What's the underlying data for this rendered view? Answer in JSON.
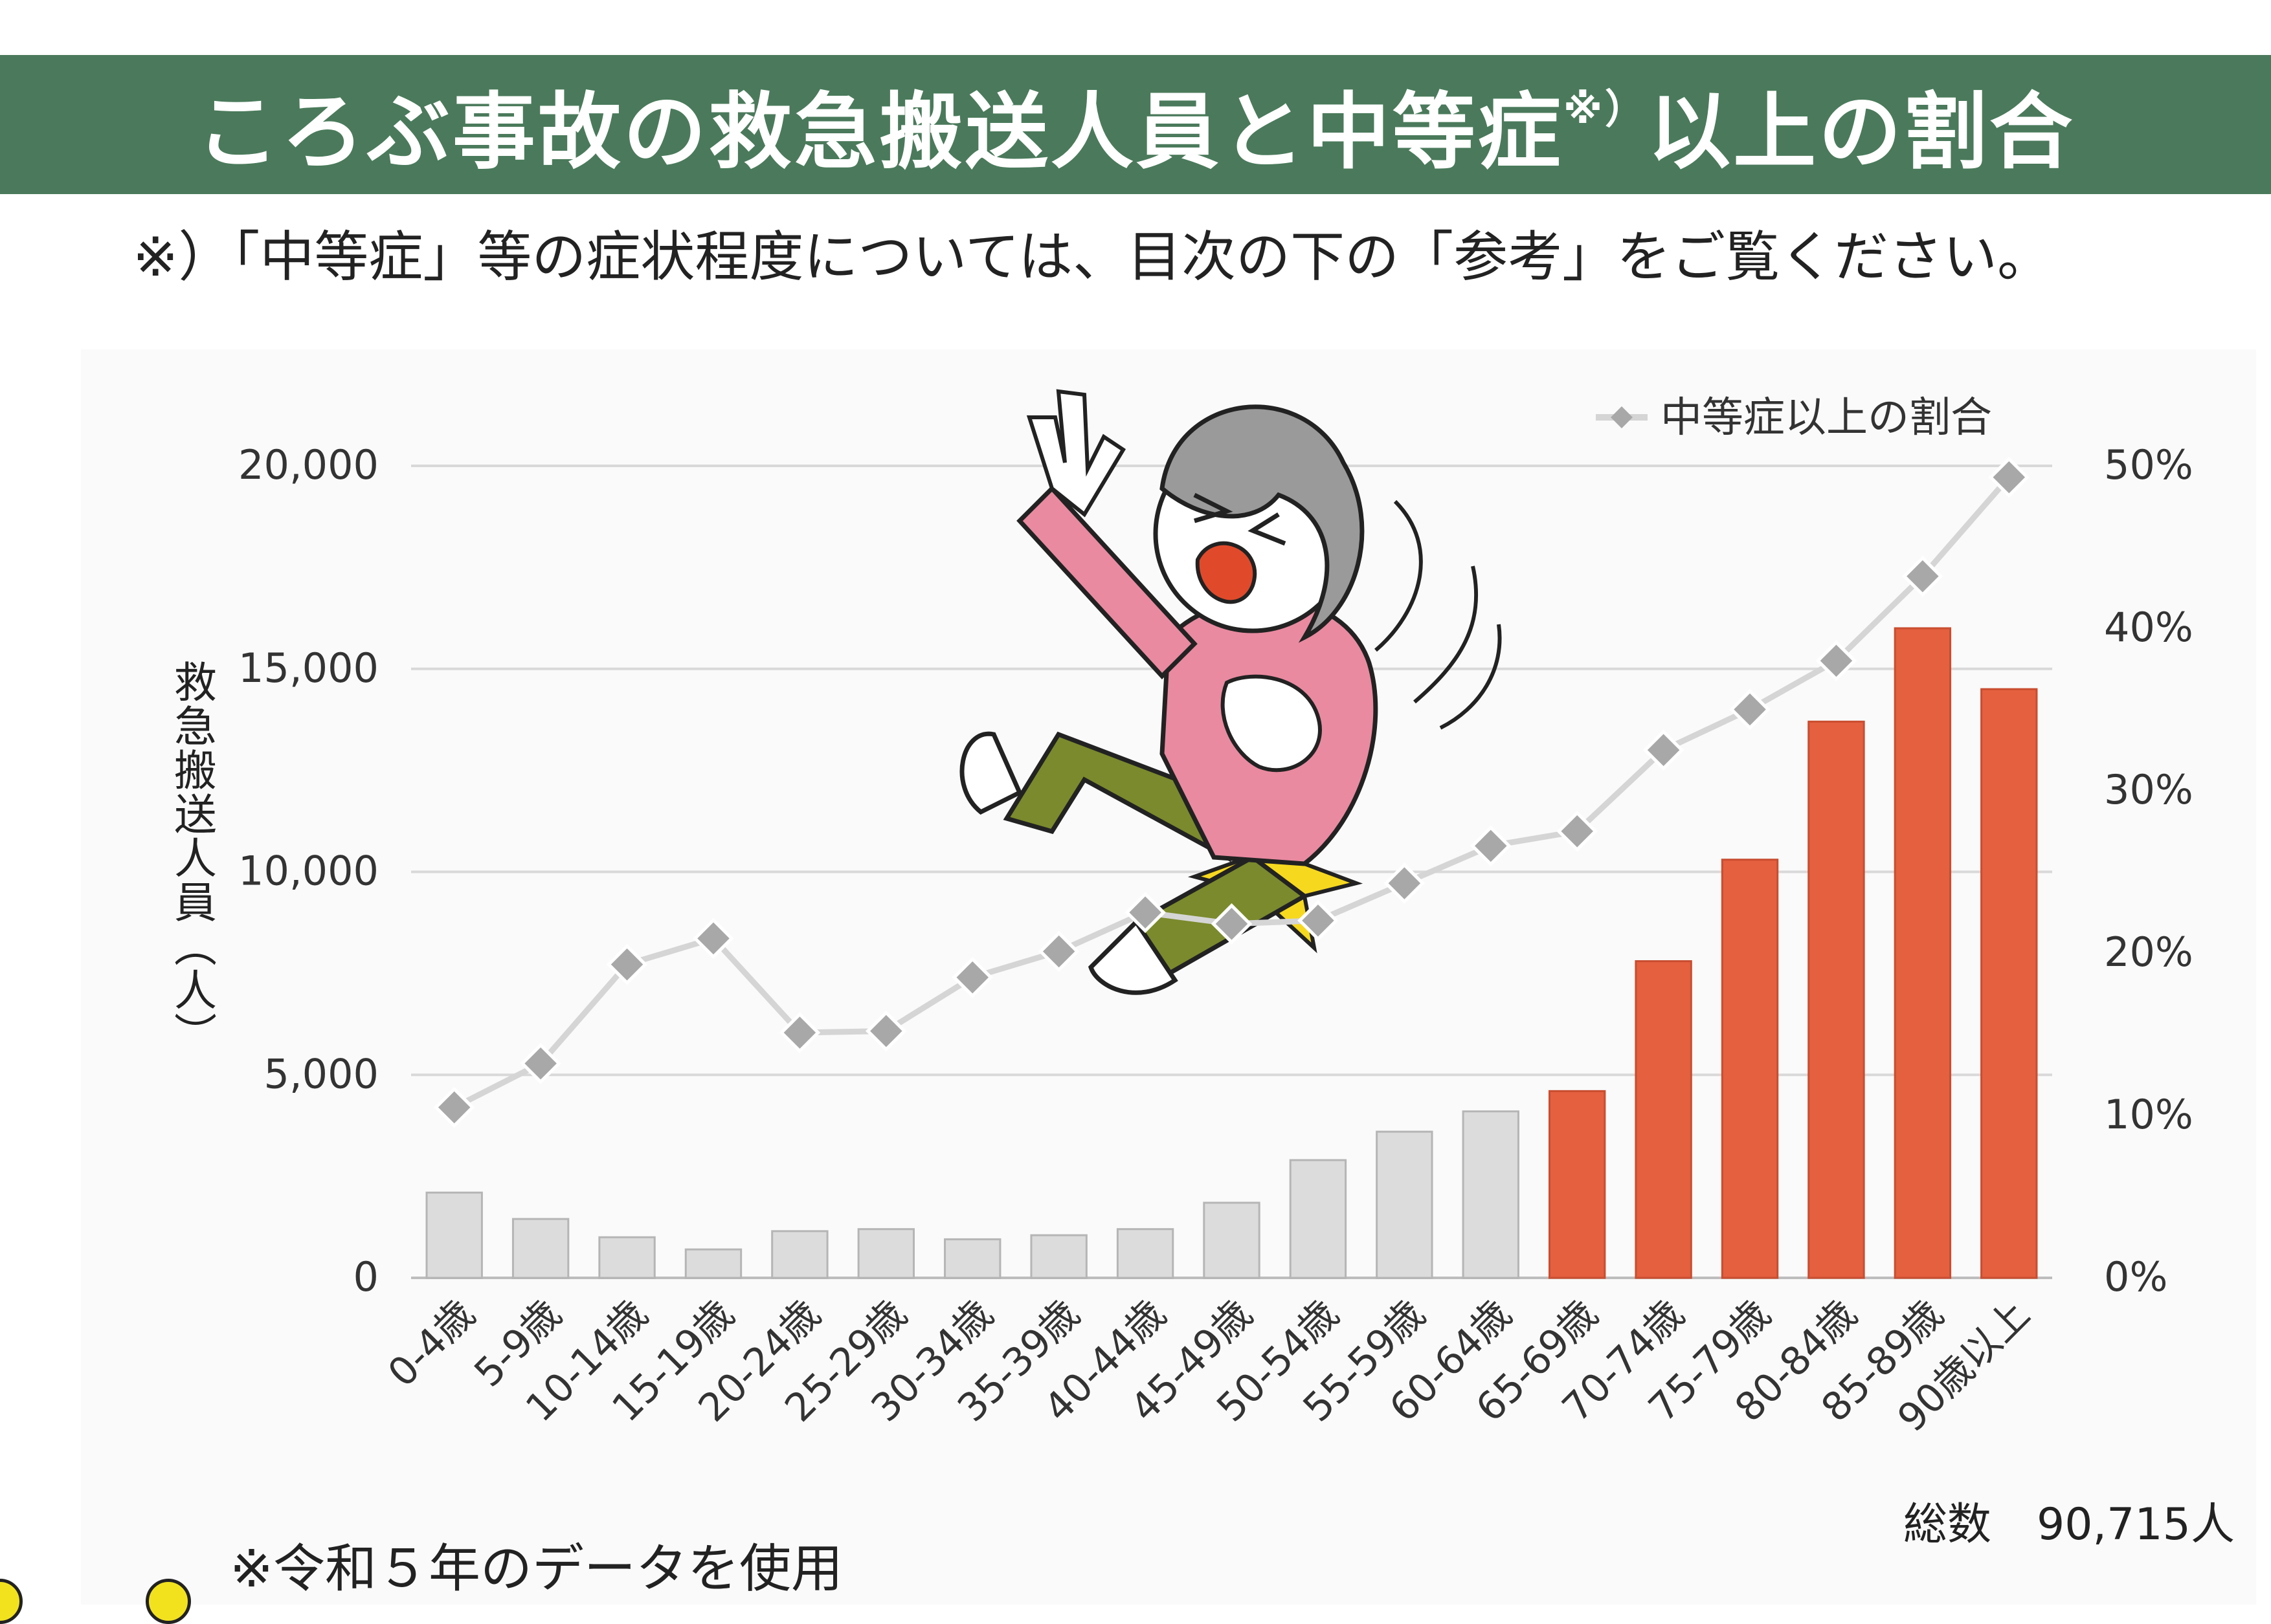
{
  "header": {
    "title_main": "ころぶ事故の救急搬送人員と中等症",
    "title_sup": "※）",
    "title_tail": "以上の割合"
  },
  "note_top": "※）「中等症」等の症状程度については、目次の下の「参考」をご覧ください。",
  "note_bottom": "※令和５年のデータを使用",
  "total": {
    "label": "総数",
    "value": "90,715人"
  },
  "illustration": {
    "icon": "falling-elderly-woman-illustration"
  },
  "colors": {
    "title_bg": "#4a7a5b",
    "bar_gray": "#dcdcdc",
    "bar_red": "#e4603f",
    "line": "#d5d5d5",
    "marker": "#a8a8a8",
    "grid": "#d9d9d9"
  },
  "chart_data": {
    "type": "bar",
    "ylabel": "救急搬送人員（人）",
    "ylim": [
      0,
      20000
    ],
    "y_ticks": [
      "0",
      "5,000",
      "10,000",
      "15,000",
      "20,000"
    ],
    "y2lim": [
      0,
      50
    ],
    "y2_ticks": [
      "0%",
      "10%",
      "20%",
      "30%",
      "40%",
      "50%"
    ],
    "grid": true,
    "legend_position": "top-right",
    "categories": [
      "0-4歳",
      "5-9歳",
      "10-14歳",
      "15-19歳",
      "20-24歳",
      "25-29歳",
      "30-34歳",
      "35-39歳",
      "40-44歳",
      "45-49歳",
      "50-54歳",
      "55-59歳",
      "60-64歳",
      "65-69歳",
      "70-74歳",
      "75-79歳",
      "80-84歳",
      "85-89歳",
      "90歳以上"
    ],
    "series": [
      {
        "type": "bar",
        "axis": "left",
        "values": [
          2100,
          1450,
          1000,
          700,
          1150,
          1200,
          950,
          1050,
          1200,
          1850,
          2900,
          3600,
          4100,
          4600,
          7800,
          10300,
          13700,
          16000,
          14500
        ],
        "highlight_from_index": 13
      },
      {
        "type": "line",
        "axis": "right",
        "name": "中等症以上の割合",
        "values": [
          10.5,
          13.2,
          19.3,
          20.9,
          15.1,
          15.2,
          18.5,
          20.1,
          22.5,
          21.8,
          22.0,
          24.3,
          26.6,
          27.5,
          32.5,
          35.0,
          38.0,
          43.2,
          49.3
        ]
      }
    ]
  }
}
